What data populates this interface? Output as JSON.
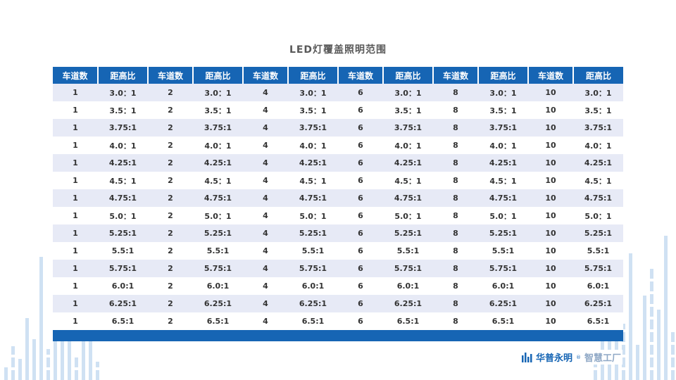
{
  "title": "LED灯覆盖照明范围",
  "table": {
    "headers": [
      "车道数",
      "距高比",
      "车道数",
      "距高比",
      "车道数",
      "距高比",
      "车道数",
      "距高比",
      "车道数",
      "距高比",
      "车道数",
      "距高比"
    ],
    "lanes": [
      "1",
      "2",
      "4",
      "6",
      "8",
      "10"
    ],
    "ratios": [
      "3.0：1",
      "3.5：1",
      "3.75:1",
      "4.0：1",
      "4.25:1",
      "4.5：1",
      "4.75:1",
      "5.0：1",
      "5.25:1",
      "5.5:1",
      "5.75:1",
      "6.0:1",
      "6.25:1",
      "6.5:1"
    ]
  },
  "logo": {
    "icon": "bar-chart-logo-icon",
    "brand": "华普永明",
    "registered": "®",
    "suffix": "智慧工厂"
  },
  "colors": {
    "header_blue": "#1665b4",
    "row_alt": "#e7eaf6",
    "row_plain": "#ffffff",
    "decor_bar": "#cfe1f3",
    "title_gray": "#595959",
    "brand_blue": "#1665b4",
    "suffix_blue": "#8fa8c6"
  }
}
